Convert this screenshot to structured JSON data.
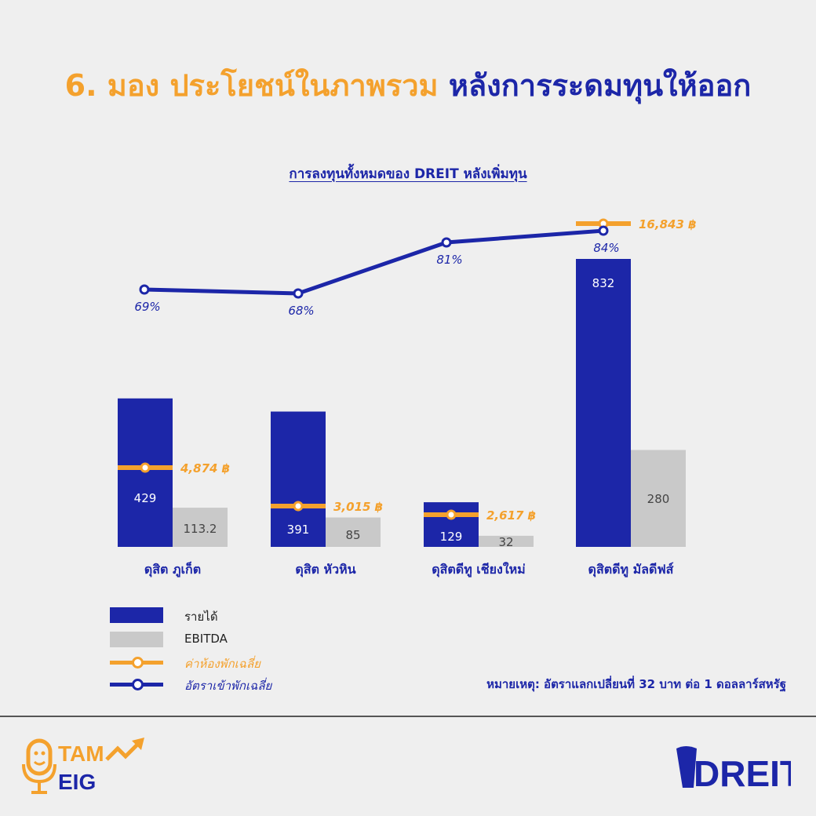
{
  "title": {
    "part1": "6. มอง",
    "part2": "ประโยชน์ในภาพรวม",
    "part3": "หลังการระดมทุนให้ออก"
  },
  "chart_data": {
    "type": "bar",
    "title": "การลงทุนทั้งหมดของ DREIT หลังเพิ่มทุน",
    "categories": [
      "ดุสิต ภูเก็ต",
      "ดุสิต หัวหิน",
      "ดุสิตดีทู เชียงใหม่",
      "ดุสิตดีทู มัลดีฟส์"
    ],
    "series": [
      {
        "name": "รายได้",
        "type": "bar",
        "color": "#1c26a8",
        "values": [
          429,
          391,
          129,
          832
        ],
        "labels": [
          "429",
          "391",
          "129",
          "832"
        ]
      },
      {
        "name": "EBITDA",
        "type": "bar",
        "color": "#c9c9c9",
        "values": [
          113.2,
          85,
          32,
          280
        ],
        "labels": [
          "113.2",
          "85",
          "32",
          "280"
        ]
      },
      {
        "name": "ค่าห้องพักเฉลี่ย",
        "type": "marker",
        "color": "#f4a12d",
        "values": [
          4874,
          3015,
          2617,
          16843
        ],
        "labels": [
          "4,874 ฿",
          "3,015 ฿",
          "2,617 ฿",
          "16,843 ฿"
        ]
      },
      {
        "name": "อัตราเข้าพักเฉลี่ย",
        "type": "line",
        "color": "#1c26a8",
        "values": [
          69,
          68,
          81,
          84
        ],
        "labels": [
          "69%",
          "68%",
          "81%",
          "84%"
        ]
      }
    ],
    "ylim": [
      0,
      850
    ],
    "legend_position": "bottom-left",
    "grid": false
  },
  "footnote": "หมายเหตุ: อัตราแลกเปลี่ยนที่ 32 บาท ต่อ 1 ดอลลาร์สหรัฐ",
  "logos": {
    "left_top": "TAM",
    "left_bottom": "EIG",
    "right": "DREIT"
  },
  "colors": {
    "blue": "#1c26a8",
    "orange": "#f4a12d",
    "gray": "#c9c9c9",
    "background": "#efefef"
  }
}
